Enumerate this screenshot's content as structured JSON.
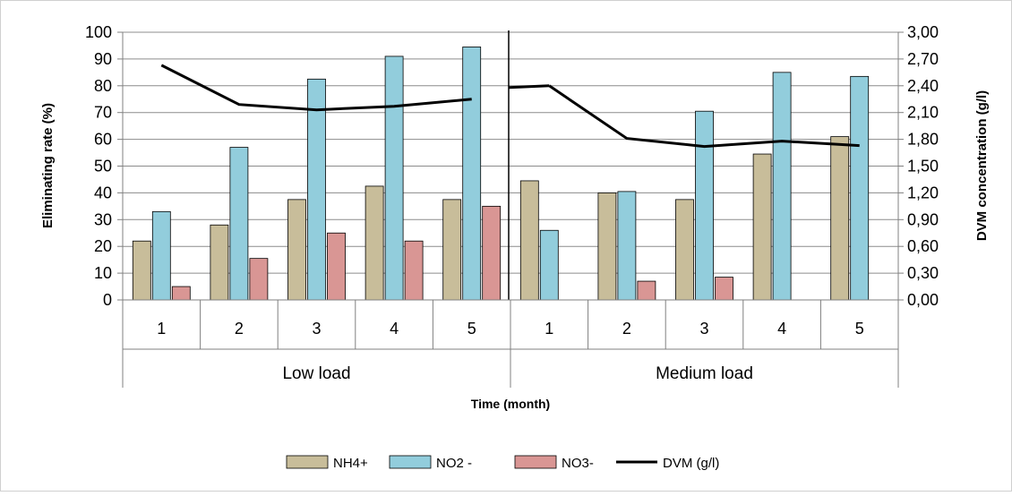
{
  "chart_data": {
    "type": "bar",
    "xlabel": "Time (month)",
    "ylabel": "Eliminating rate (%)",
    "y2label": "DVM concentration (g/l)",
    "ylim": [
      0,
      100
    ],
    "y2lim": [
      0,
      3
    ],
    "yticks": [
      "0",
      "10",
      "20",
      "30",
      "40",
      "50",
      "60",
      "70",
      "80",
      "90",
      "100"
    ],
    "y2ticks": [
      "0,00",
      "0,30",
      "0,60",
      "0,90",
      "1,20",
      "1,50",
      "1,80",
      "2,10",
      "2,40",
      "2,70",
      "3,00"
    ],
    "grid": true,
    "legend_position": "bottom",
    "groups": [
      {
        "label": "Low load",
        "categories": [
          "1",
          "2",
          "3",
          "4",
          "5"
        ]
      },
      {
        "label": "Medium load",
        "categories": [
          "1",
          "2",
          "3",
          "4",
          "5"
        ]
      }
    ],
    "series": [
      {
        "name": "NH4+",
        "kind": "bar",
        "axis": "left",
        "color": "#c8bd9a",
        "values": [
          22,
          28,
          37.5,
          42.5,
          37.5,
          44.5,
          40,
          37.5,
          54.5,
          61
        ]
      },
      {
        "name": "NO2 -",
        "kind": "bar",
        "axis": "left",
        "color": "#92cddc",
        "values": [
          33,
          57,
          82.5,
          91,
          94.5,
          26,
          40.5,
          null,
          85,
          83.5
        ]
      },
      {
        "name": "NO3-",
        "kind": "bar",
        "axis": "left",
        "color": "#d99694",
        "values": [
          5,
          15.5,
          25,
          22,
          35,
          null,
          7,
          8.5,
          null,
          null
        ]
      },
      {
        "name": "DVM  (g/l)",
        "kind": "line",
        "axis": "right",
        "color": "#000000",
        "values": [
          2.63,
          2.19,
          2.13,
          2.17,
          2.25,
          2.4,
          1.81,
          1.72,
          1.78,
          1.73
        ]
      }
    ],
    "nitrite_medium_month3": 70.5
  }
}
